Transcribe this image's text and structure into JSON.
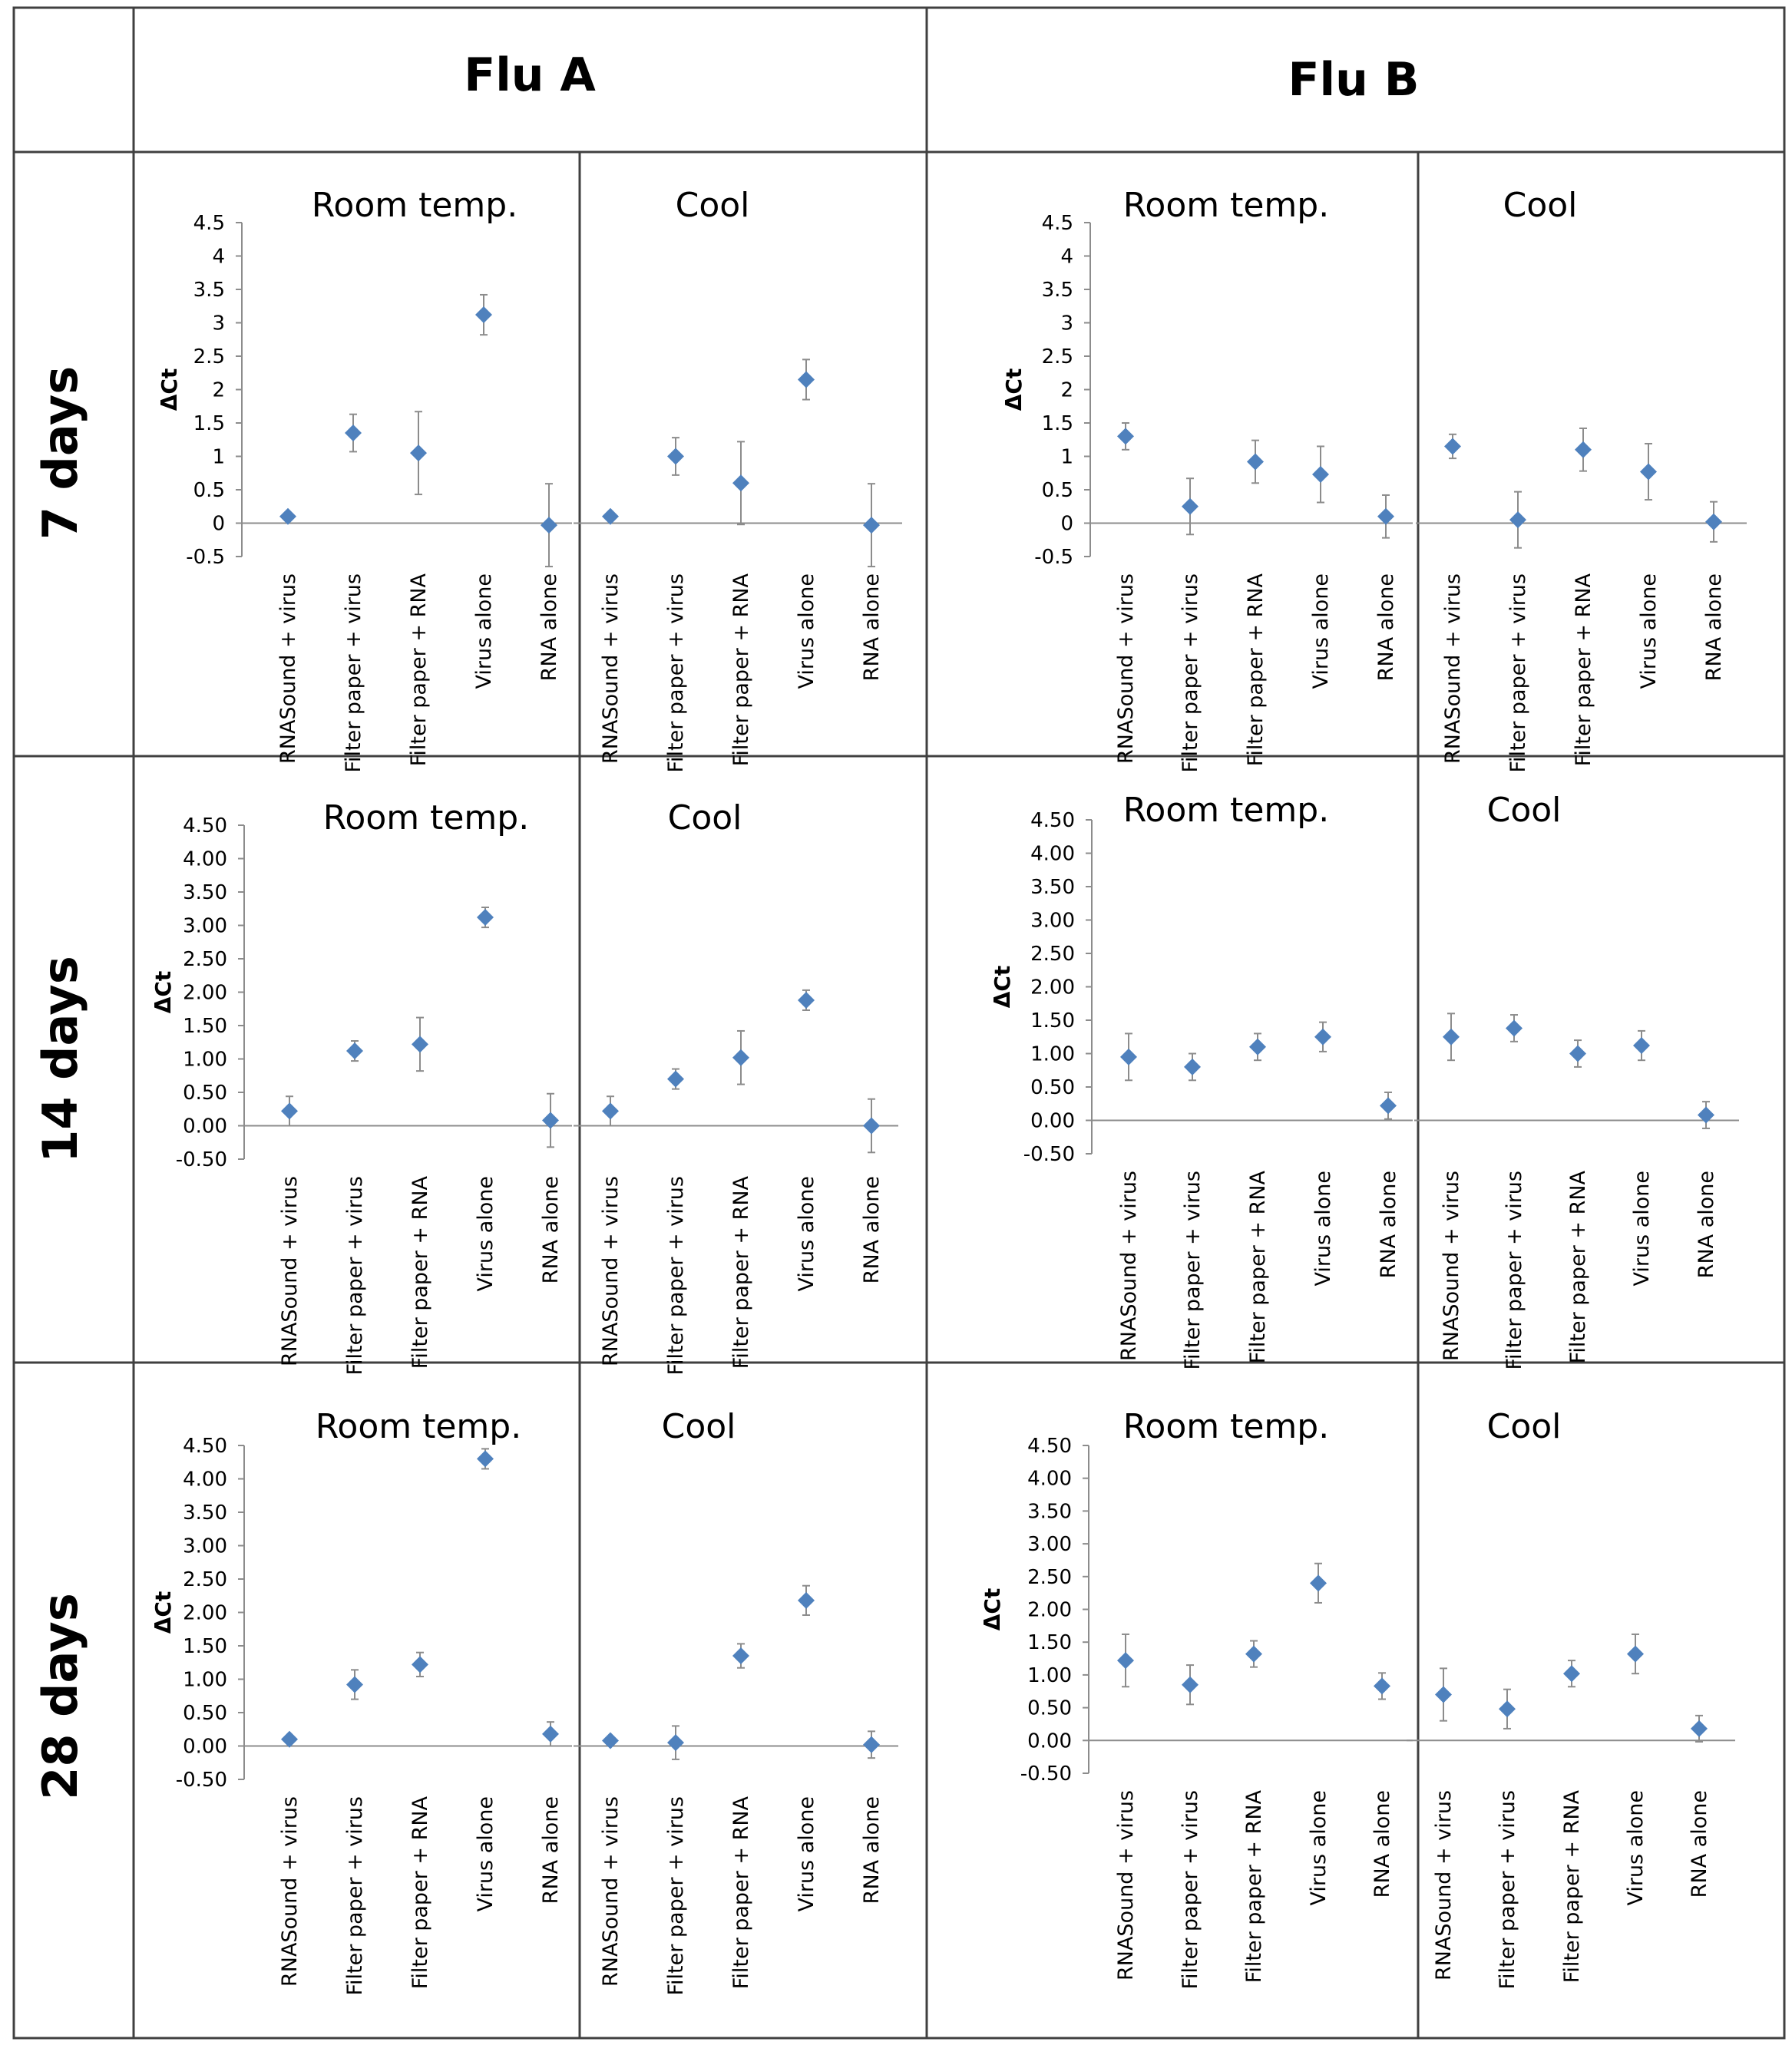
{
  "columns": [
    "Flu A",
    "Flu B"
  ],
  "rows": [
    "7 days",
    "14 days",
    "28 days"
  ],
  "colors": {
    "marker": "#4f81bd",
    "errorbar": "#8c8c8c",
    "axis": "#8c8c8c",
    "grid_border": "#404040",
    "text": "#000000"
  },
  "chart_data": [
    {
      "type": "scatter",
      "panel": "7 days / Flu A",
      "ylabel": "ΔCt",
      "ylim": [
        -0.5,
        4.5
      ],
      "yticks": [
        -0.5,
        0,
        0.5,
        1,
        1.5,
        2,
        2.5,
        3,
        3.5,
        4,
        4.5
      ],
      "ytick_format": "plain",
      "categories": [
        "RNASound + virus",
        "Filter paper + virus",
        "Filter paper + RNA",
        "Virus alone",
        "RNA alone"
      ],
      "groups": [
        {
          "title": "Room temp.",
          "values": [
            0.1,
            1.35,
            1.05,
            3.12,
            -0.03
          ],
          "errors": [
            0.05,
            0.28,
            0.62,
            0.3,
            0.62
          ]
        },
        {
          "title": "Cool",
          "values": [
            0.1,
            1.0,
            0.6,
            2.15,
            -0.03
          ],
          "errors": [
            0.05,
            0.28,
            0.62,
            0.3,
            0.62
          ]
        }
      ]
    },
    {
      "type": "scatter",
      "panel": "7 days / Flu B",
      "ylabel": "ΔCt",
      "ylim": [
        -0.5,
        4.5
      ],
      "yticks": [
        -0.5,
        0,
        0.5,
        1,
        1.5,
        2,
        2.5,
        3,
        3.5,
        4,
        4.5
      ],
      "ytick_format": "plain",
      "categories": [
        "RNASound + virus",
        "Filter paper + virus",
        "Filter paper + RNA",
        "Virus alone",
        "RNA alone"
      ],
      "groups": [
        {
          "title": "Room temp.",
          "values": [
            1.3,
            0.25,
            0.92,
            0.73,
            0.1
          ],
          "errors": [
            0.2,
            0.42,
            0.32,
            0.42,
            0.32
          ]
        },
        {
          "title": "Cool",
          "values": [
            1.15,
            0.05,
            1.1,
            0.77,
            0.02
          ],
          "errors": [
            0.18,
            0.42,
            0.32,
            0.42,
            0.3
          ]
        }
      ]
    },
    {
      "type": "scatter",
      "panel": "14 days / Flu A",
      "ylabel": "ΔCt",
      "ylim": [
        -0.5,
        4.5
      ],
      "yticks": [
        -0.5,
        0,
        0.5,
        1,
        1.5,
        2,
        2.5,
        3,
        3.5,
        4,
        4.5
      ],
      "ytick_format": "fixed2",
      "categories": [
        "RNASound + virus",
        "Filter paper + virus",
        "Filter paper + RNA",
        "Virus alone",
        "RNA alone"
      ],
      "groups": [
        {
          "title": "Room temp.",
          "values": [
            0.22,
            1.12,
            1.22,
            3.12,
            0.08
          ],
          "errors": [
            0.22,
            0.15,
            0.4,
            0.15,
            0.4
          ]
        },
        {
          "title": "Cool",
          "values": [
            0.22,
            0.7,
            1.02,
            1.88,
            0.0
          ],
          "errors": [
            0.22,
            0.15,
            0.4,
            0.15,
            0.4
          ]
        }
      ]
    },
    {
      "type": "scatter",
      "panel": "14 days / Flu B",
      "ylabel": "ΔCt",
      "ylim": [
        -0.5,
        4.5
      ],
      "yticks": [
        -0.5,
        0,
        0.5,
        1,
        1.5,
        2,
        2.5,
        3,
        3.5,
        4,
        4.5
      ],
      "ytick_format": "fixed2",
      "categories": [
        "RNASound + virus",
        "Filter paper + virus",
        "Filter paper + RNA",
        "Virus alone",
        "RNA alone"
      ],
      "groups": [
        {
          "title": "Room temp.",
          "values": [
            0.95,
            0.8,
            1.1,
            1.25,
            0.22
          ],
          "errors": [
            0.35,
            0.2,
            0.2,
            0.22,
            0.2
          ]
        },
        {
          "title": "Cool",
          "values": [
            1.25,
            1.38,
            1.0,
            1.12,
            0.08
          ],
          "errors": [
            0.35,
            0.2,
            0.2,
            0.22,
            0.2
          ]
        }
      ]
    },
    {
      "type": "scatter",
      "panel": "28 days / Flu A",
      "ylabel": "ΔCt",
      "ylim": [
        -0.5,
        4.5
      ],
      "yticks": [
        -0.5,
        0,
        0.5,
        1,
        1.5,
        2,
        2.5,
        3,
        3.5,
        4,
        4.5
      ],
      "ytick_format": "fixed2",
      "categories": [
        "RNASound + virus",
        "Filter paper + virus",
        "Filter paper + RNA",
        "Virus alone",
        "RNA alone"
      ],
      "groups": [
        {
          "title": "Room temp.",
          "values": [
            0.1,
            0.92,
            1.22,
            4.3,
            0.18
          ],
          "errors": [
            0.05,
            0.22,
            0.18,
            0.15,
            0.18
          ]
        },
        {
          "title": "Cool",
          "values": [
            0.08,
            0.05,
            1.35,
            2.18,
            0.02
          ],
          "errors": [
            0.05,
            0.25,
            0.18,
            0.22,
            0.2
          ]
        }
      ]
    },
    {
      "type": "scatter",
      "panel": "28 days / Flu B",
      "ylabel": "ΔCt",
      "ylim": [
        -0.5,
        4.5
      ],
      "yticks": [
        -0.5,
        0,
        0.5,
        1,
        1.5,
        2,
        2.5,
        3,
        3.5,
        4,
        4.5
      ],
      "ytick_format": "fixed2",
      "categories": [
        "RNASound + virus",
        "Filter paper + virus",
        "Filter paper + RNA",
        "Virus alone",
        "RNA alone"
      ],
      "groups": [
        {
          "title": "Room temp.",
          "values": [
            1.22,
            0.85,
            1.32,
            2.4,
            0.83
          ],
          "errors": [
            0.4,
            0.3,
            0.2,
            0.3,
            0.2
          ]
        },
        {
          "title": "Cool",
          "values": [
            0.7,
            0.48,
            1.02,
            1.32,
            0.18
          ],
          "errors": [
            0.4,
            0.3,
            0.2,
            0.3,
            0.2
          ]
        }
      ]
    }
  ]
}
